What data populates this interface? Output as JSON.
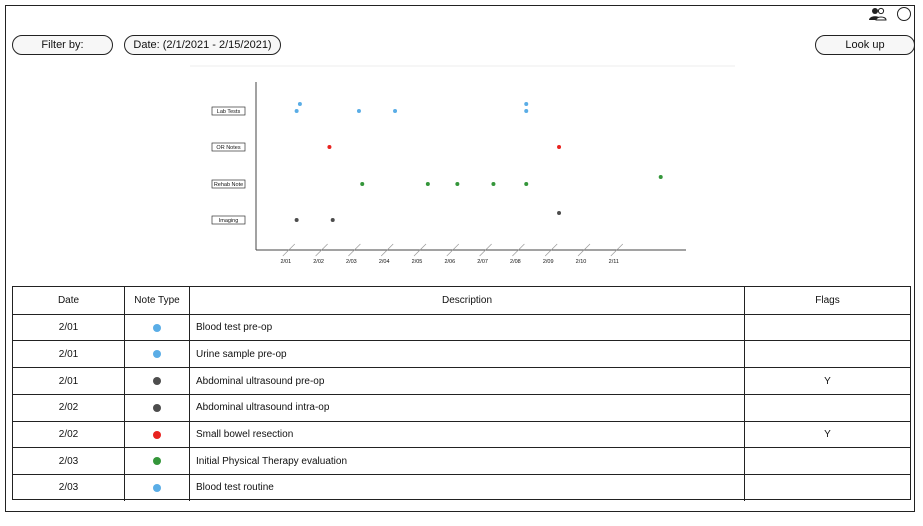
{
  "toolbar": {
    "filter_label": "Filter by:",
    "date_label": "Date: (2/1/2021 - 2/15/2021)",
    "lookup_label": "Look up"
  },
  "colors": {
    "lab": "#5aade6",
    "or": "#e8231f",
    "rehab": "#34963a",
    "imaging": "#4d4d4d"
  },
  "chart_data": {
    "type": "scatter",
    "categories": [
      "Lab Tests",
      "OR Notes",
      "Rehab Note",
      "Imaging"
    ],
    "x_ticks": [
      "2/01",
      "2/02",
      "2/03",
      "2/04",
      "2/05",
      "2/06",
      "2/07",
      "2/08",
      "2/09",
      "2/10",
      "2/11"
    ],
    "xlabel": "",
    "ylabel": "",
    "points": [
      {
        "x": 1.3,
        "category": "Lab Tests",
        "stack": 0
      },
      {
        "x": 1.4,
        "category": "Lab Tests",
        "stack": 1
      },
      {
        "x": 3.2,
        "category": "Lab Tests",
        "stack": 0
      },
      {
        "x": 4.3,
        "category": "Lab Tests",
        "stack": 0
      },
      {
        "x": 8.3,
        "category": "Lab Tests",
        "stack": 0
      },
      {
        "x": 8.3,
        "category": "Lab Tests",
        "stack": 1
      },
      {
        "x": 2.3,
        "category": "OR Notes",
        "stack": 0
      },
      {
        "x": 9.3,
        "category": "OR Notes",
        "stack": 0
      },
      {
        "x": 3.3,
        "category": "Rehab Note",
        "stack": 0
      },
      {
        "x": 5.3,
        "category": "Rehab Note",
        "stack": 0
      },
      {
        "x": 6.2,
        "category": "Rehab Note",
        "stack": 0
      },
      {
        "x": 7.3,
        "category": "Rehab Note",
        "stack": 0
      },
      {
        "x": 8.3,
        "category": "Rehab Note",
        "stack": 0
      },
      {
        "x": 12.4,
        "category": "Rehab Note",
        "stack": 1
      },
      {
        "x": 1.3,
        "category": "Imaging",
        "stack": 0
      },
      {
        "x": 2.4,
        "category": "Imaging",
        "stack": 0
      },
      {
        "x": 9.3,
        "category": "Imaging",
        "stack": 1
      }
    ]
  },
  "table": {
    "headers": {
      "date": "Date",
      "type": "Note Type",
      "desc": "Description",
      "flags": "Flags"
    },
    "rows": [
      {
        "date": "2/01",
        "type": "lab",
        "desc": "Blood test pre-op",
        "flag": ""
      },
      {
        "date": "2/01",
        "type": "lab",
        "desc": "Urine sample pre-op",
        "flag": ""
      },
      {
        "date": "2/01",
        "type": "imaging",
        "desc": "Abdominal ultrasound pre-op",
        "flag": "Y"
      },
      {
        "date": "2/02",
        "type": "imaging",
        "desc": "Abdominal ultrasound intra-op",
        "flag": ""
      },
      {
        "date": "2/02",
        "type": "or",
        "desc": "Small bowel resection",
        "flag": "Y"
      },
      {
        "date": "2/03",
        "type": "rehab",
        "desc": "Initial Physical Therapy evaluation",
        "flag": ""
      },
      {
        "date": "2/03",
        "type": "lab",
        "desc": "Blood test routine",
        "flag": ""
      }
    ]
  }
}
